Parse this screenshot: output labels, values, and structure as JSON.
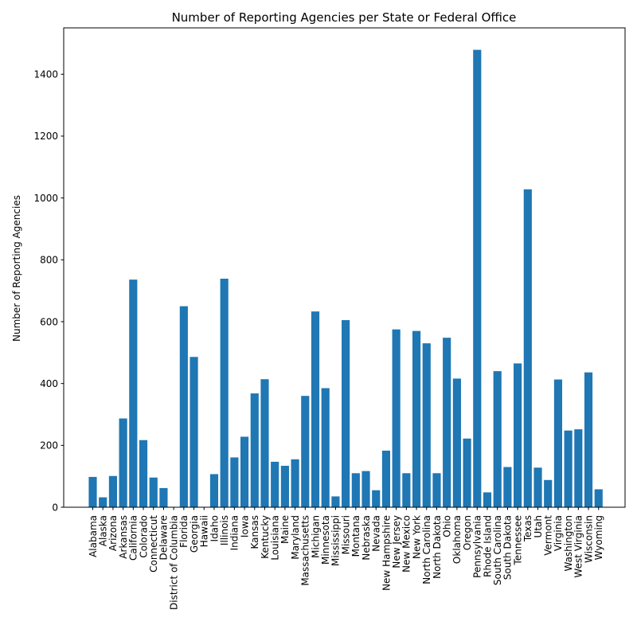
{
  "chart_data": {
    "type": "bar",
    "title": "Number of Reporting Agencies per State or Federal Office",
    "xlabel": "",
    "ylabel": "Number of Reporting Agencies",
    "ylim": [
      0,
      1550
    ],
    "yticks": [
      0,
      200,
      400,
      600,
      800,
      1000,
      1200,
      1400
    ],
    "grid": false,
    "bar_color": "#1f77b4",
    "categories": [
      "Alabama",
      "Alaska",
      "Arizona",
      "Arkansas",
      "California",
      "Colorado",
      "Connecticut",
      "Delaware",
      "District of Columbia",
      "Florida",
      "Georgia",
      "Hawaii",
      "Idaho",
      "Illinois",
      "Indiana",
      "Iowa",
      "Kansas",
      "Kentucky",
      "Louisiana",
      "Maine",
      "Maryland",
      "Massachusetts",
      "Michigan",
      "Minnesota",
      "Mississippi",
      "Missouri",
      "Montana",
      "Nebraska",
      "Nevada",
      "New Hampshire",
      "New Jersey",
      "New Mexico",
      "New York",
      "North Carolina",
      "North Dakota",
      "Ohio",
      "Oklahoma",
      "Oregon",
      "Pennsylvania",
      "Rhode Island",
      "South Carolina",
      "South Dakota",
      "Tennessee",
      "Texas",
      "Utah",
      "Vermont",
      "Virginia",
      "Washington",
      "West Virginia",
      "Wisconsin",
      "Wyoming"
    ],
    "values": [
      98,
      32,
      101,
      287,
      736,
      217,
      96,
      62,
      1,
      650,
      486,
      0,
      107,
      739,
      161,
      228,
      368,
      414,
      147,
      134,
      155,
      360,
      633,
      385,
      35,
      605,
      110,
      117,
      55,
      183,
      575,
      110,
      570,
      530,
      110,
      548,
      416,
      222,
      1479,
      48,
      440,
      130,
      465,
      1028,
      128,
      88,
      413,
      248,
      252,
      436,
      58
    ]
  }
}
